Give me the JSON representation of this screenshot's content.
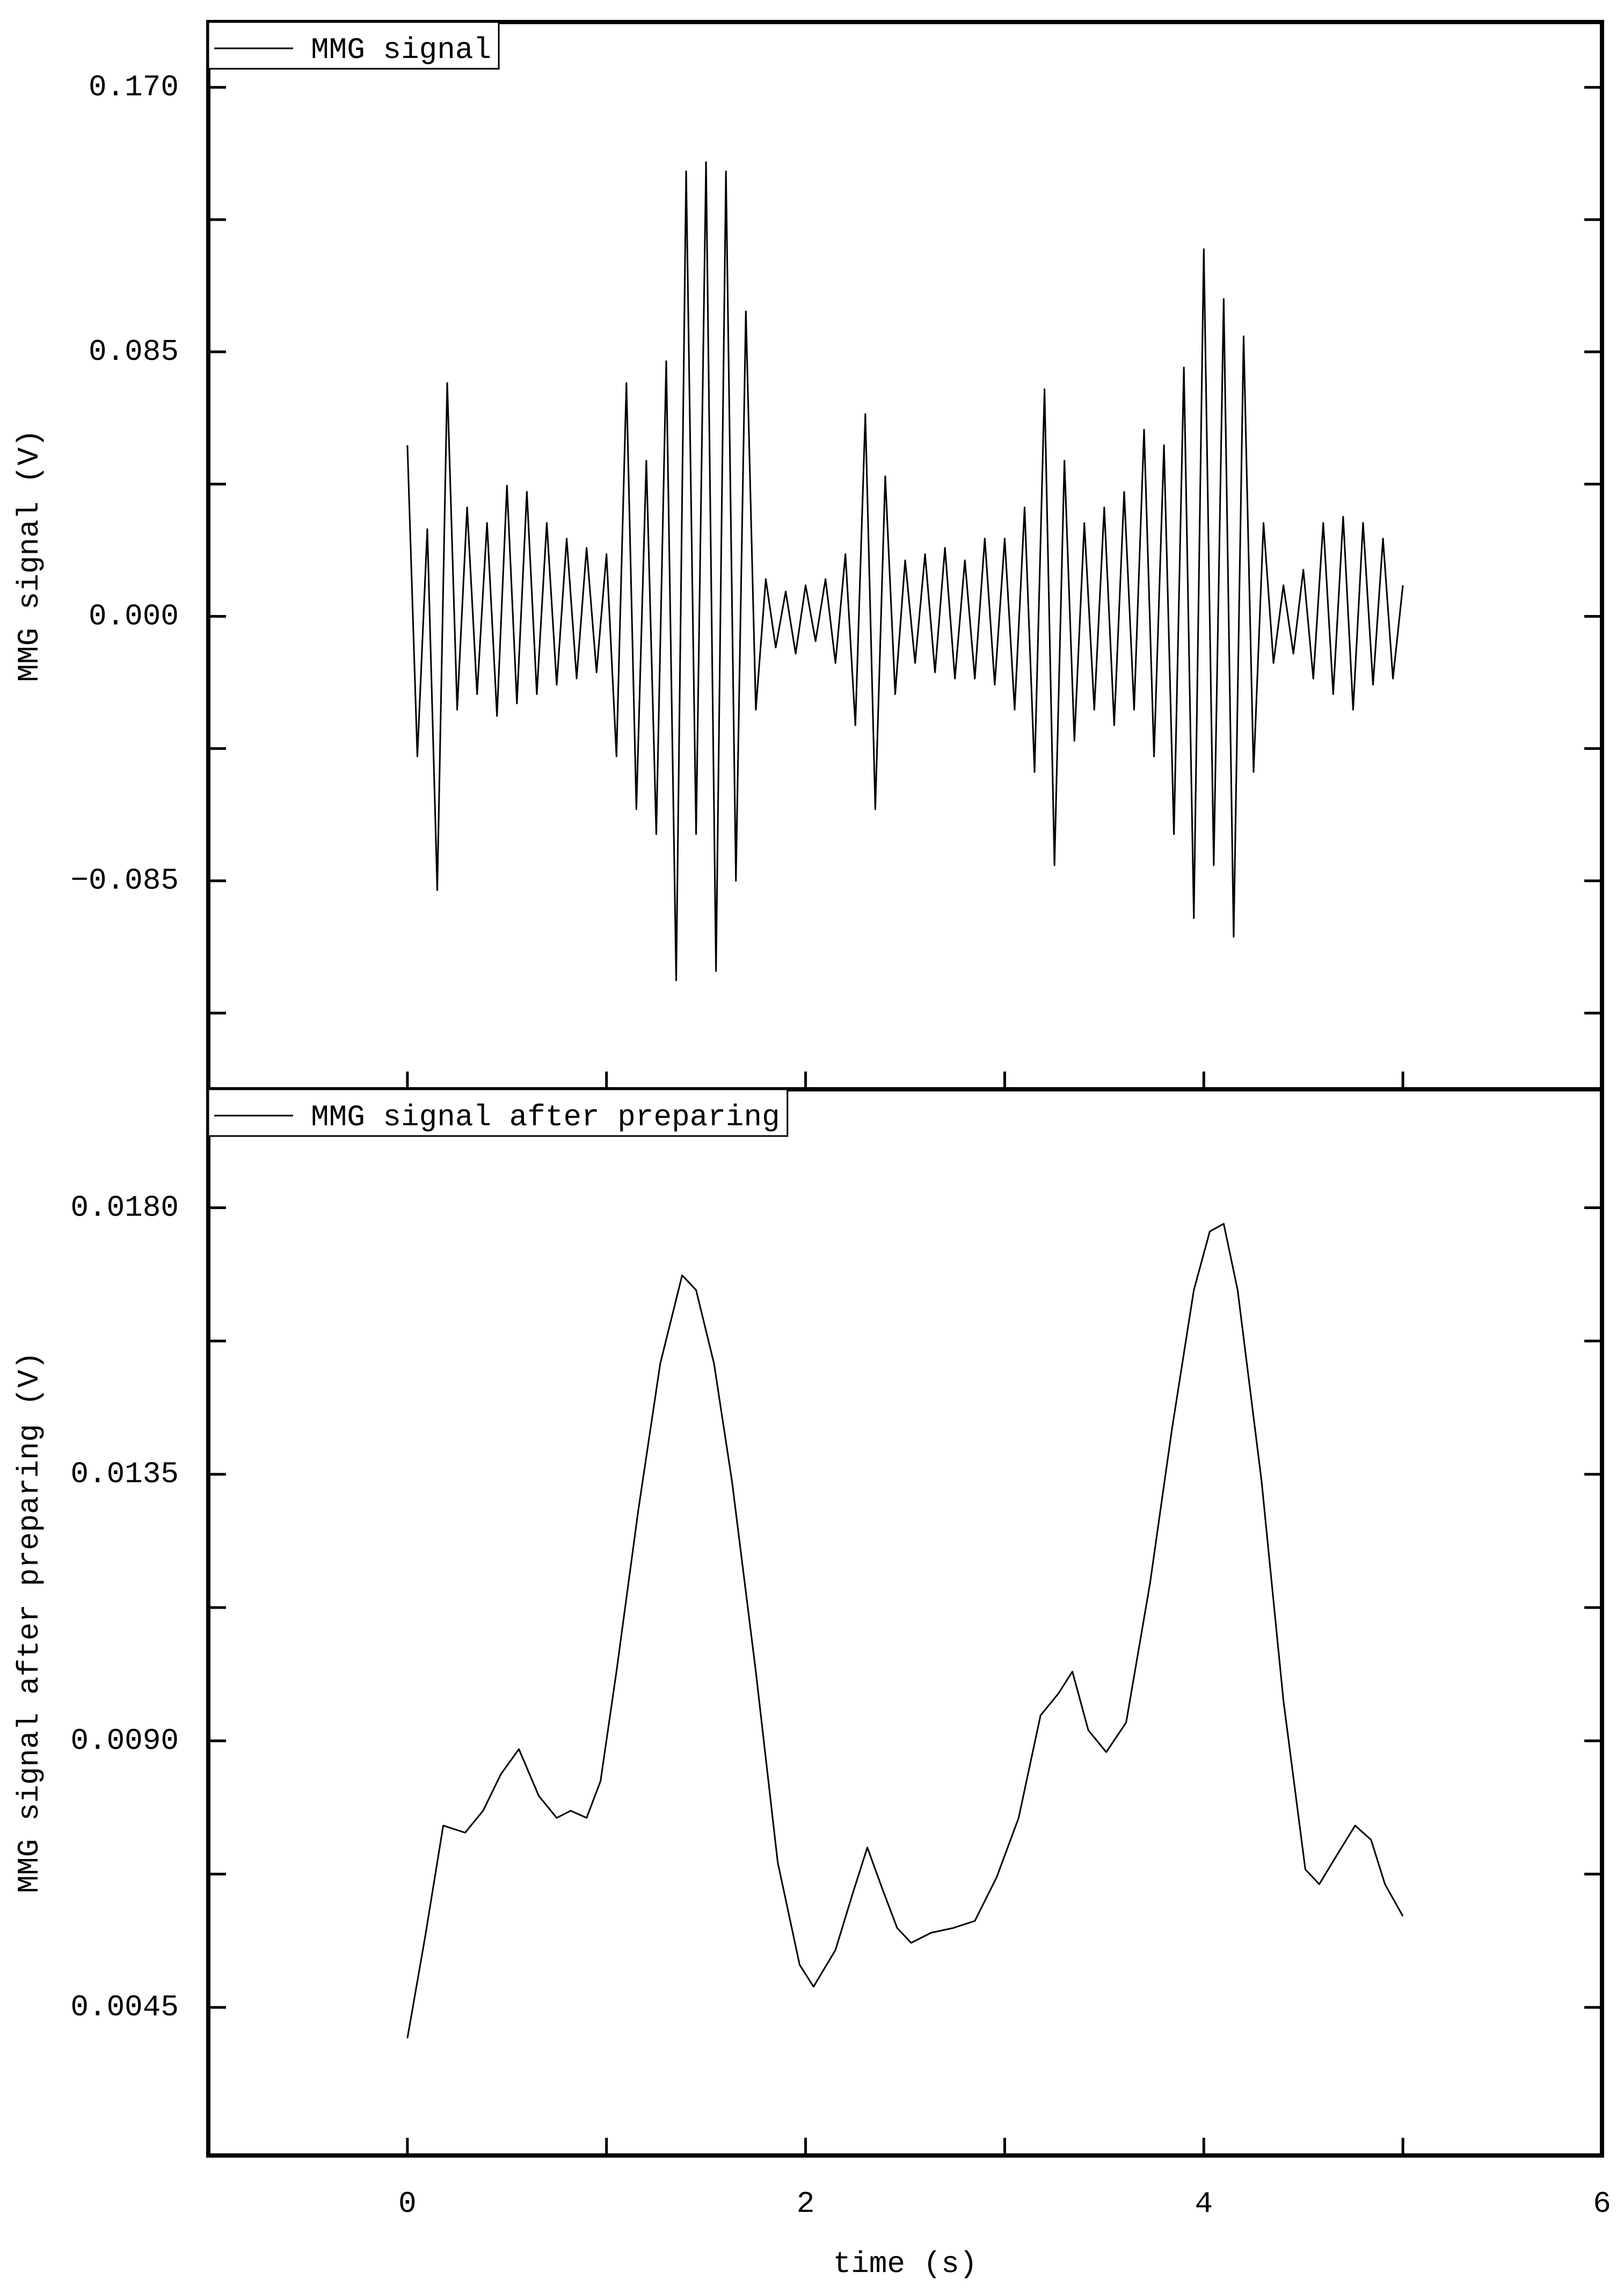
{
  "chart_data": [
    {
      "type": "line",
      "x": [
        0,
        0.05,
        0.1,
        0.15,
        0.2,
        0.25,
        0.3,
        0.35,
        0.4,
        0.45,
        0.5,
        0.55,
        0.6,
        0.65,
        0.7,
        0.75,
        0.8,
        0.85,
        0.9,
        0.95,
        1,
        1.05,
        1.1,
        1.15,
        1.2,
        1.25,
        1.3,
        1.35,
        1.4,
        1.45,
        1.5,
        1.55,
        1.6,
        1.65,
        1.7,
        1.75,
        1.8,
        1.85,
        1.9,
        1.95,
        2,
        2.05,
        2.1,
        2.15,
        2.2,
        2.25,
        2.3,
        2.35,
        2.4,
        2.45,
        2.5,
        2.55,
        2.6,
        2.65,
        2.7,
        2.75,
        2.8,
        2.85,
        2.9,
        2.95,
        3,
        3.05,
        3.1,
        3.15,
        3.2,
        3.25,
        3.3,
        3.35,
        3.4,
        3.45,
        3.5,
        3.55,
        3.6,
        3.65,
        3.7,
        3.75,
        3.8,
        3.85,
        3.9,
        3.95,
        4,
        4.05,
        4.1,
        4.15,
        4.2,
        4.25,
        4.3,
        4.35,
        4.4,
        4.45,
        4.5,
        4.55,
        4.6,
        4.65,
        4.7,
        4.75,
        4.8,
        4.85,
        4.9,
        4.95,
        5
      ],
      "series": [
        {
          "name": "MMG signal",
          "color": "#000000",
          "values": [
            0.055,
            -0.045,
            0.028,
            -0.088,
            0.075,
            -0.03,
            0.035,
            -0.025,
            0.03,
            -0.032,
            0.042,
            -0.028,
            0.04,
            -0.025,
            0.03,
            -0.022,
            0.025,
            -0.02,
            0.022,
            -0.018,
            0.02,
            -0.045,
            0.075,
            -0.062,
            0.05,
            -0.07,
            0.082,
            -0.117,
            0.143,
            -0.07,
            0.146,
            -0.114,
            0.143,
            -0.085,
            0.098,
            -0.03,
            0.012,
            -0.01,
            0.008,
            -0.012,
            0.01,
            -0.008,
            0.012,
            -0.015,
            0.02,
            -0.035,
            0.065,
            -0.062,
            0.045,
            -0.025,
            0.018,
            -0.015,
            0.02,
            -0.018,
            0.022,
            -0.02,
            0.018,
            -0.02,
            0.025,
            -0.022,
            0.025,
            -0.03,
            0.035,
            -0.05,
            0.073,
            -0.08,
            0.05,
            -0.04,
            0.03,
            -0.03,
            0.035,
            -0.035,
            0.04,
            -0.03,
            0.06,
            -0.045,
            0.055,
            -0.07,
            0.08,
            -0.097,
            0.118,
            -0.08,
            0.102,
            -0.103,
            0.09,
            -0.05,
            0.03,
            -0.015,
            0.01,
            -0.012,
            0.015,
            -0.02,
            0.03,
            -0.025,
            0.032,
            -0.03,
            0.03,
            -0.022,
            0.025,
            -0.02,
            0.01
          ]
        }
      ],
      "ylabel": "MMG signal (V)",
      "xlim": [
        -1,
        6
      ],
      "xticks": [
        0,
        2,
        4,
        6
      ],
      "xminorticks": [
        1,
        3,
        5
      ],
      "ylim": [
        -0.152,
        0.191
      ],
      "yticks": [
        {
          "value": -0.085,
          "label": "−0.085"
        },
        {
          "value": 0,
          "label": "0.000"
        },
        {
          "value": 0.085,
          "label": "0.085"
        },
        {
          "value": 0.17,
          "label": "0.170"
        }
      ],
      "yminorticks": [
        -0.1275,
        -0.0425,
        0.0425,
        0.1275
      ],
      "legend": "upper left"
    },
    {
      "type": "line",
      "x": [
        0,
        0.09,
        0.18,
        0.29,
        0.38,
        0.47,
        0.56,
        0.66,
        0.75,
        0.82,
        0.9,
        0.97,
        1.05,
        1.16,
        1.27,
        1.38,
        1.45,
        1.54,
        1.63,
        1.75,
        1.86,
        1.97,
        2.04,
        2.15,
        2.24,
        2.31,
        2.39,
        2.46,
        2.53,
        2.63,
        2.74,
        2.85,
        2.96,
        3.07,
        3.18,
        3.27,
        3.34,
        3.42,
        3.51,
        3.61,
        3.73,
        3.84,
        3.95,
        4.03,
        4.1,
        4.17,
        4.29,
        4.4,
        4.51,
        4.58,
        4.67,
        4.76,
        4.84,
        4.91,
        5
      ],
      "series": [
        {
          "name": "MMG signal after preparing",
          "color": "#000000",
          "values": [
            0.00398,
            0.00571,
            0.00757,
            0.00745,
            0.00782,
            0.00844,
            0.00886,
            0.00807,
            0.0077,
            0.00782,
            0.0077,
            0.00832,
            0.01017,
            0.0129,
            0.01537,
            0.01686,
            0.01661,
            0.01537,
            0.01339,
            0.01017,
            0.00695,
            0.00522,
            0.00485,
            0.00547,
            0.00646,
            0.0072,
            0.00646,
            0.00584,
            0.00559,
            0.00576,
            0.00584,
            0.00596,
            0.0067,
            0.0077,
            0.00943,
            0.0098,
            0.01017,
            0.00918,
            0.00881,
            0.00931,
            0.01166,
            0.01426,
            0.01661,
            0.0176,
            0.01773,
            0.01661,
            0.01339,
            0.00968,
            0.00683,
            0.00658,
            0.00708,
            0.00757,
            0.00733,
            0.00658,
            0.00604
          ]
        }
      ],
      "ylabel": "MMG signal after preparing (V)",
      "xlabel": "time (s)",
      "xlim": [
        -1,
        6
      ],
      "xticks": [
        0,
        2,
        4,
        6
      ],
      "xminorticks": [
        1,
        3,
        5
      ],
      "ylim": [
        0.002,
        0.02
      ],
      "yticks": [
        {
          "value": 0.0045,
          "label": "0.0045"
        },
        {
          "value": 0.009,
          "label": "0.0090"
        },
        {
          "value": 0.0135,
          "label": "0.0135"
        },
        {
          "value": 0.018,
          "label": "0.0180"
        }
      ],
      "yminorticks": [
        0.00675,
        0.01125,
        0.01575
      ],
      "legend": "upper left"
    }
  ]
}
